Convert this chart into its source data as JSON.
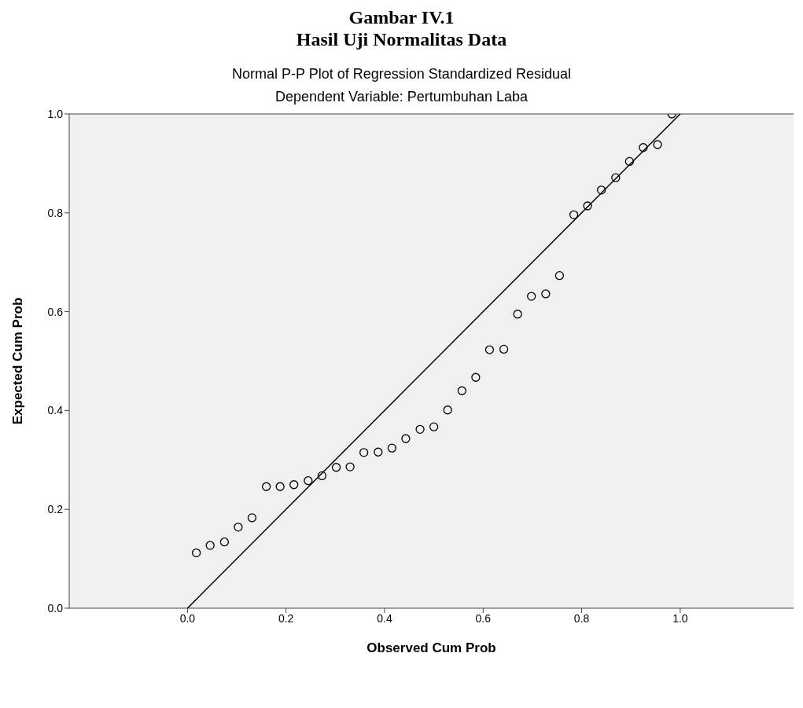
{
  "chart_data": {
    "type": "scatter",
    "title": "Normal P-P Plot of Regression Standardized Residual",
    "subtitle": "Dependent Variable: Pertumbuhan Laba",
    "xlabel": "Observed Cum Prob",
    "ylabel": "Expected Cum Prob",
    "annotations": [
      "Gambar IV.1",
      "Hasil Uji Normalitas Data"
    ],
    "xlim": [
      -0.24,
      1.23
    ],
    "ylim": [
      0,
      1
    ],
    "xticks": [
      {
        "value": 0,
        "label": "0.0"
      },
      {
        "value": 0.2,
        "label": "0.2"
      },
      {
        "value": 0.4,
        "label": "0.4"
      },
      {
        "value": 0.6,
        "label": "0.6"
      },
      {
        "value": 0.8,
        "label": "0.8"
      },
      {
        "value": 1,
        "label": "1.0"
      }
    ],
    "yticks": [
      {
        "value": 0,
        "label": "0.0"
      },
      {
        "value": 0.2,
        "label": "0.2"
      },
      {
        "value": 0.4,
        "label": "0.4"
      },
      {
        "value": 0.6,
        "label": "0.6"
      },
      {
        "value": 0.8,
        "label": "0.8"
      },
      {
        "value": 1,
        "label": "1.0"
      }
    ],
    "grid": false,
    "legend": false,
    "series": [
      {
        "color": "#000000",
        "marker": "circle",
        "x": [
          0.018,
          0.046,
          0.075,
          0.103,
          0.131,
          0.16,
          0.188,
          0.216,
          0.245,
          0.273,
          0.302,
          0.33,
          0.358,
          0.387,
          0.415,
          0.443,
          0.472,
          0.5,
          0.528,
          0.557,
          0.585,
          0.613,
          0.642,
          0.67,
          0.698,
          0.727,
          0.755,
          0.784,
          0.812,
          0.84,
          0.869,
          0.897,
          0.925,
          0.954,
          0.983
        ],
        "values": [
          0.112,
          0.127,
          0.134,
          0.164,
          0.183,
          0.246,
          0.246,
          0.25,
          0.258,
          0.268,
          0.285,
          0.286,
          0.315,
          0.316,
          0.324,
          0.343,
          0.362,
          0.367,
          0.401,
          0.44,
          0.467,
          0.523,
          0.524,
          0.595,
          0.631,
          0.636,
          0.673,
          0.796,
          0.814,
          0.846,
          0.871,
          0.904,
          0.932,
          0.938,
          1.0
        ]
      },
      {
        "type": "line",
        "color": "#000000",
        "line_style": "solid",
        "x": [
          0,
          1
        ],
        "values": [
          0,
          1
        ]
      }
    ]
  }
}
